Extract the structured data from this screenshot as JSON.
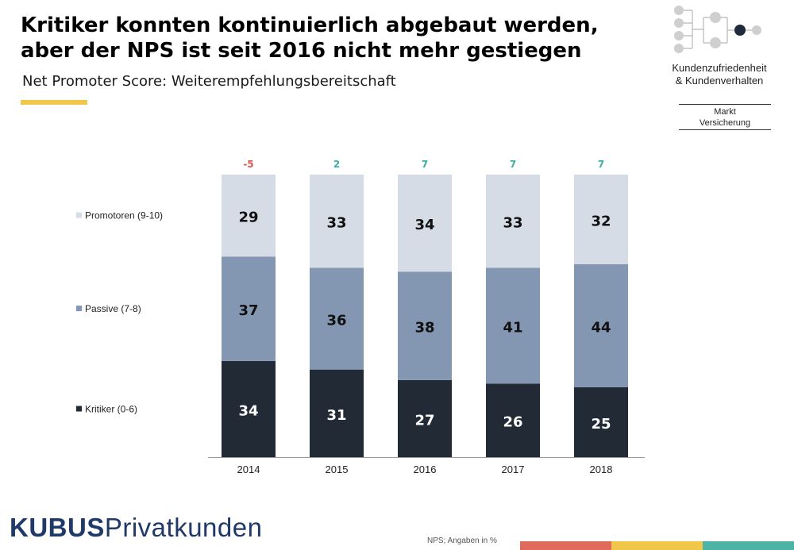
{
  "header": {
    "title_line1": "Kritiker konnten kontinuierlich abgebaut werden,",
    "title_line2": "aber der NPS ist seit 2016 nicht mehr gestiegen",
    "subtitle": "Net Promoter Score: Weiterempfehlungsbereitschaft"
  },
  "branding": {
    "logo_line1": "Kundenzufriedenheit",
    "logo_line2": "& Kundenverhalten",
    "segment_line1": "Markt",
    "segment_line2": "Versicherung",
    "kubus_bold": "KUBUS",
    "kubus_regular": "Privatkunden"
  },
  "footer": {
    "source_note": "NPS; Angaben in %",
    "strip_colors": [
      "#e06a5c",
      "#f0c74a",
      "#4db3a4"
    ]
  },
  "colors": {
    "promotoren": "#d6dce6",
    "passive": "#8396b2",
    "kritiker": "#222a36",
    "nps_negative": "#e0524a",
    "nps_positive": "#3aaea0",
    "accent": "#f0c74a",
    "brand": "#1f3a68"
  },
  "chart_data": {
    "type": "bar",
    "stacked": true,
    "orientation": "vertical",
    "categories": [
      "2014",
      "2015",
      "2016",
      "2017",
      "2018"
    ],
    "series": [
      {
        "name": "Kritiker (0-6)",
        "values": [
          34,
          31,
          27,
          26,
          25
        ]
      },
      {
        "name": "Passive (7-8)",
        "values": [
          37,
          36,
          38,
          41,
          44
        ]
      },
      {
        "name": "Promotoren (9-10)",
        "values": [
          29,
          33,
          34,
          33,
          32
        ]
      }
    ],
    "nps": [
      "-5",
      "2",
      "7",
      "7",
      "7"
    ],
    "legend_placement": "left",
    "ylim": [
      0,
      100
    ],
    "unit": "%"
  }
}
